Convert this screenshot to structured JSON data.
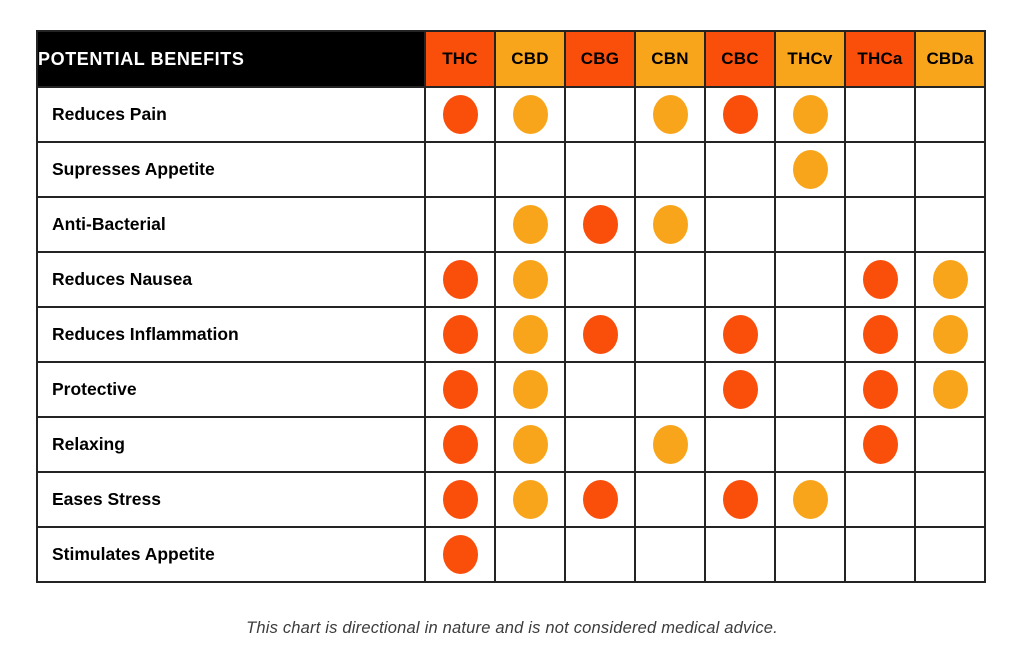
{
  "header": {
    "corner_label": "POTENTIAL BENEFITS"
  },
  "chart_data": {
    "type": "table",
    "title": "POTENTIAL BENEFITS",
    "legend_position": "none",
    "grid": true,
    "columns": [
      {
        "label": "THC",
        "header_color": "red"
      },
      {
        "label": "CBD",
        "header_color": "orange"
      },
      {
        "label": "CBG",
        "header_color": "red"
      },
      {
        "label": "CBN",
        "header_color": "orange"
      },
      {
        "label": "CBC",
        "header_color": "red"
      },
      {
        "label": "THCv",
        "header_color": "orange"
      },
      {
        "label": "THCa",
        "header_color": "red"
      },
      {
        "label": "CBDa",
        "header_color": "orange"
      }
    ],
    "rows": [
      {
        "label": "Reduces Pain",
        "dots": [
          "red",
          "orange",
          null,
          "orange",
          "red",
          "orange",
          null,
          null
        ]
      },
      {
        "label": "Supresses Appetite",
        "dots": [
          null,
          null,
          null,
          null,
          null,
          "orange",
          null,
          null
        ]
      },
      {
        "label": "Anti-Bacterial",
        "dots": [
          null,
          "orange",
          "red",
          "orange",
          null,
          null,
          null,
          null
        ]
      },
      {
        "label": "Reduces Nausea",
        "dots": [
          "red",
          "orange",
          null,
          null,
          null,
          null,
          "red",
          "orange"
        ]
      },
      {
        "label": "Reduces Inflammation",
        "dots": [
          "red",
          "orange",
          "red",
          null,
          "red",
          null,
          "red",
          "orange"
        ]
      },
      {
        "label": "Protective",
        "dots": [
          "red",
          "orange",
          null,
          null,
          "red",
          null,
          "red",
          "orange"
        ]
      },
      {
        "label": "Relaxing",
        "dots": [
          "red",
          "orange",
          null,
          "orange",
          null,
          null,
          "red",
          null
        ]
      },
      {
        "label": "Eases Stress",
        "dots": [
          "red",
          "orange",
          "red",
          null,
          "red",
          "orange",
          null,
          null
        ]
      },
      {
        "label": "Stimulates Appetite",
        "dots": [
          "red",
          null,
          null,
          null,
          null,
          null,
          null,
          null
        ]
      }
    ],
    "colors": {
      "red": "#FA4E0B",
      "orange": "#F9A51B",
      "header_text": "#000000",
      "corner_bg": "#000000",
      "corner_text": "#FFFFFF",
      "border": "#242424"
    }
  },
  "footer": {
    "disclaimer": "This chart is directional in nature and is not considered medical advice."
  }
}
